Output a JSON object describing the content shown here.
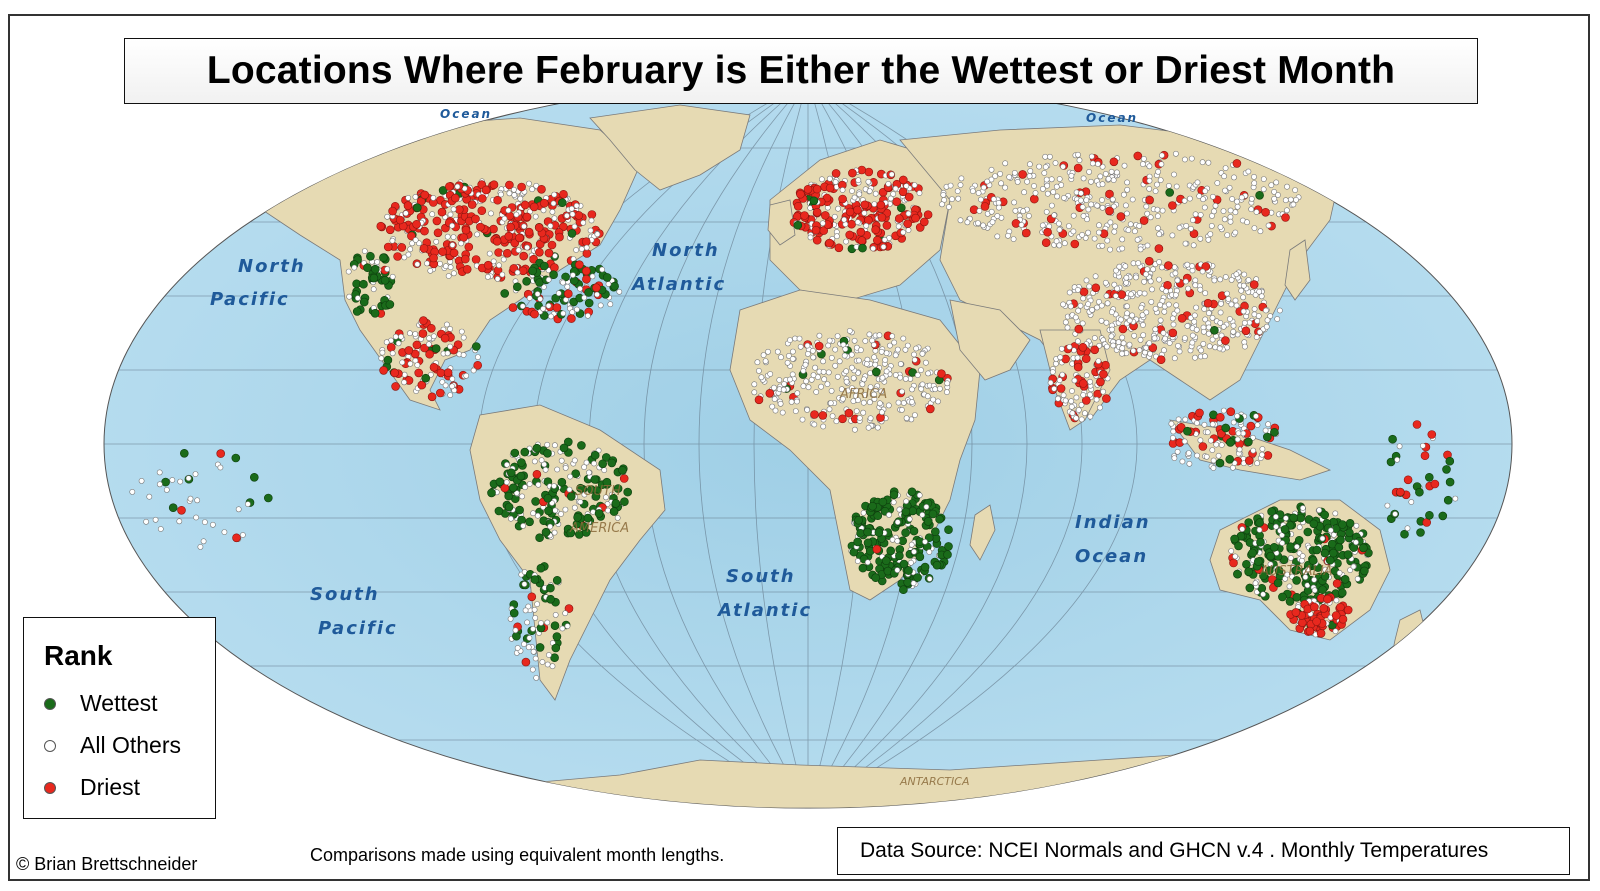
{
  "title": "Locations Where February is Either the Wettest or Driest Month",
  "legend": {
    "title": "Rank",
    "items": [
      {
        "label": "Wettest",
        "color": "#1a6b1a"
      },
      {
        "label": "All Others",
        "color": "#ffffff"
      },
      {
        "label": "Driest",
        "color": "#e8281e"
      }
    ]
  },
  "ocean_labels": {
    "north_pacific": [
      "North",
      "Pacific"
    ],
    "north_atlantic": [
      "North",
      "Atlantic"
    ],
    "south_pacific": [
      "South",
      "Pacific"
    ],
    "south_atlantic": [
      "South",
      "Atlantic"
    ],
    "indian_ocean": [
      "Indian",
      "Ocean"
    ],
    "arctic_left": "Ocean",
    "arctic_right": "Ocean"
  },
  "continent_labels": {
    "africa": "AFRICA",
    "south_america": [
      "SOUTH",
      "AMERICA"
    ],
    "australia": "AUSTRALIA",
    "antarctica": "ANTARCTICA"
  },
  "credit": "© Brian Brettschneider",
  "note": "Comparisons made using equivalent month lengths.",
  "source": "Data Source: NCEI Normals and GHCN v.4 . Monthly Temperatures",
  "colors": {
    "ocean": "#a8d4e8",
    "land": "#e8dcb5",
    "wettest": "#1a6b1a",
    "driest": "#e8281e",
    "others": "#ffffff"
  }
}
